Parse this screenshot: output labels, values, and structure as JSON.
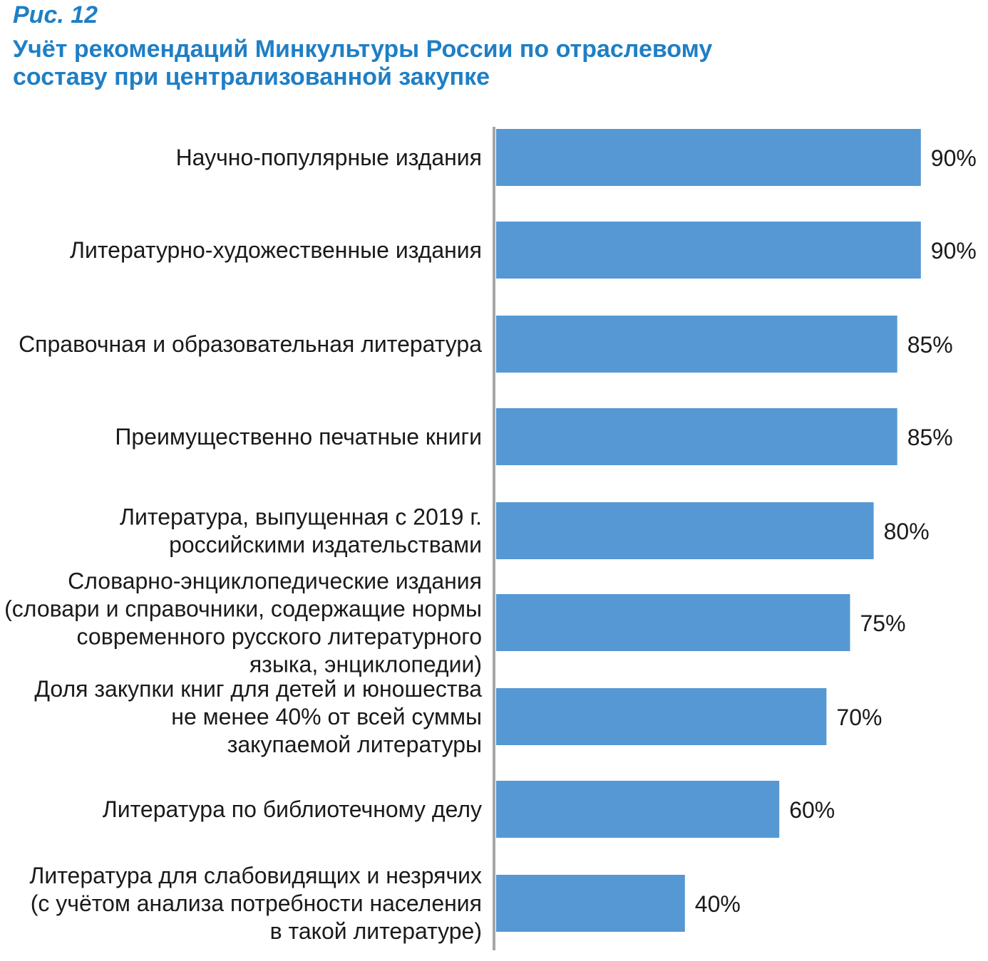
{
  "figure": {
    "label": "Рис. 12",
    "title_lines": [
      "Учёт рекомендаций Минкультуры России по отраслевому",
      "составу при централизованной закупке"
    ]
  },
  "colors": {
    "bar": "#5598d3",
    "axis": "#a6a6a6",
    "title": "#1f7fc5",
    "text": "#1a1a1a"
  },
  "chart_data": {
    "type": "bar",
    "orientation": "horizontal",
    "title": "Учёт рекомендаций Минкультуры России по отраслевому составу при централизованной закупке",
    "categories": [
      [
        "Научно-популярные издания"
      ],
      [
        "Литературно-художественные издания"
      ],
      [
        "Справочная и образовательная литература"
      ],
      [
        "Преимущественно печатные книги"
      ],
      [
        "Литература, выпущенная с 2019 г.",
        "российскими издательствами"
      ],
      [
        "Словарно-энциклопедические издания",
        "(словари и справочники, содержащие нормы",
        "современного русского литературного",
        "языка, энциклопедии)"
      ],
      [
        "Доля закупки книг для детей и юношества",
        "не менее 40% от всей суммы",
        "закупаемой литературы"
      ],
      [
        "Литература по библиотечному делу"
      ],
      [
        "Литература для слабовидящих и незрячих",
        "(с учётом анализа потребности населения",
        "в такой литературе)"
      ]
    ],
    "values": [
      90,
      90,
      85,
      85,
      80,
      75,
      70,
      60,
      40
    ],
    "value_labels": [
      "90%",
      "90%",
      "85%",
      "85%",
      "80%",
      "75%",
      "70%",
      "60%",
      "40%"
    ],
    "xlim": [
      0,
      100
    ],
    "grid": false,
    "legend": "none"
  }
}
